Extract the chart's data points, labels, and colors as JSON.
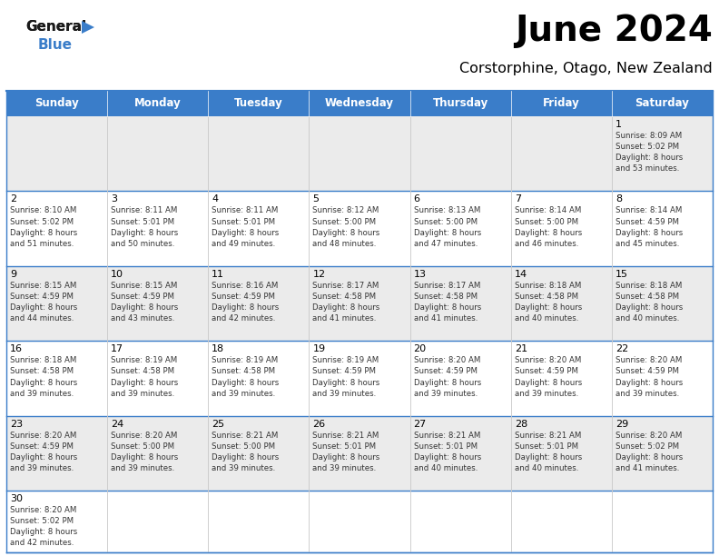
{
  "title": "June 2024",
  "subtitle": "Corstorphine, Otago, New Zealand",
  "days_of_week": [
    "Sunday",
    "Monday",
    "Tuesday",
    "Wednesday",
    "Thursday",
    "Friday",
    "Saturday"
  ],
  "header_bg": "#3A7DC9",
  "header_text": "#FFFFFF",
  "row_bg_even": "#EBEBEB",
  "row_bg_odd": "#FFFFFF",
  "border_color": "#3A7DC9",
  "inner_border_color": "#C8C8C8",
  "day_num_color": "#000000",
  "cell_text_color": "#333333",
  "logo_general_color": "#1A1A1A",
  "logo_blue_color": "#3A7DC9",
  "logo_triangle_color": "#3A7DC9",
  "calendar_data": [
    [
      null,
      null,
      null,
      null,
      null,
      null,
      {
        "day": "1",
        "sunrise": "8:09 AM",
        "sunset": "5:02 PM",
        "daylight": "8 hours\nand 53 minutes."
      }
    ],
    [
      {
        "day": "2",
        "sunrise": "8:10 AM",
        "sunset": "5:02 PM",
        "daylight": "8 hours\nand 51 minutes."
      },
      {
        "day": "3",
        "sunrise": "8:11 AM",
        "sunset": "5:01 PM",
        "daylight": "8 hours\nand 50 minutes."
      },
      {
        "day": "4",
        "sunrise": "8:11 AM",
        "sunset": "5:01 PM",
        "daylight": "8 hours\nand 49 minutes."
      },
      {
        "day": "5",
        "sunrise": "8:12 AM",
        "sunset": "5:00 PM",
        "daylight": "8 hours\nand 48 minutes."
      },
      {
        "day": "6",
        "sunrise": "8:13 AM",
        "sunset": "5:00 PM",
        "daylight": "8 hours\nand 47 minutes."
      },
      {
        "day": "7",
        "sunrise": "8:14 AM",
        "sunset": "5:00 PM",
        "daylight": "8 hours\nand 46 minutes."
      },
      {
        "day": "8",
        "sunrise": "8:14 AM",
        "sunset": "4:59 PM",
        "daylight": "8 hours\nand 45 minutes."
      }
    ],
    [
      {
        "day": "9",
        "sunrise": "8:15 AM",
        "sunset": "4:59 PM",
        "daylight": "8 hours\nand 44 minutes."
      },
      {
        "day": "10",
        "sunrise": "8:15 AM",
        "sunset": "4:59 PM",
        "daylight": "8 hours\nand 43 minutes."
      },
      {
        "day": "11",
        "sunrise": "8:16 AM",
        "sunset": "4:59 PM",
        "daylight": "8 hours\nand 42 minutes."
      },
      {
        "day": "12",
        "sunrise": "8:17 AM",
        "sunset": "4:58 PM",
        "daylight": "8 hours\nand 41 minutes."
      },
      {
        "day": "13",
        "sunrise": "8:17 AM",
        "sunset": "4:58 PM",
        "daylight": "8 hours\nand 41 minutes."
      },
      {
        "day": "14",
        "sunrise": "8:18 AM",
        "sunset": "4:58 PM",
        "daylight": "8 hours\nand 40 minutes."
      },
      {
        "day": "15",
        "sunrise": "8:18 AM",
        "sunset": "4:58 PM",
        "daylight": "8 hours\nand 40 minutes."
      }
    ],
    [
      {
        "day": "16",
        "sunrise": "8:18 AM",
        "sunset": "4:58 PM",
        "daylight": "8 hours\nand 39 minutes."
      },
      {
        "day": "17",
        "sunrise": "8:19 AM",
        "sunset": "4:58 PM",
        "daylight": "8 hours\nand 39 minutes."
      },
      {
        "day": "18",
        "sunrise": "8:19 AM",
        "sunset": "4:58 PM",
        "daylight": "8 hours\nand 39 minutes."
      },
      {
        "day": "19",
        "sunrise": "8:19 AM",
        "sunset": "4:59 PM",
        "daylight": "8 hours\nand 39 minutes."
      },
      {
        "day": "20",
        "sunrise": "8:20 AM",
        "sunset": "4:59 PM",
        "daylight": "8 hours\nand 39 minutes."
      },
      {
        "day": "21",
        "sunrise": "8:20 AM",
        "sunset": "4:59 PM",
        "daylight": "8 hours\nand 39 minutes."
      },
      {
        "day": "22",
        "sunrise": "8:20 AM",
        "sunset": "4:59 PM",
        "daylight": "8 hours\nand 39 minutes."
      }
    ],
    [
      {
        "day": "23",
        "sunrise": "8:20 AM",
        "sunset": "4:59 PM",
        "daylight": "8 hours\nand 39 minutes."
      },
      {
        "day": "24",
        "sunrise": "8:20 AM",
        "sunset": "5:00 PM",
        "daylight": "8 hours\nand 39 minutes."
      },
      {
        "day": "25",
        "sunrise": "8:21 AM",
        "sunset": "5:00 PM",
        "daylight": "8 hours\nand 39 minutes."
      },
      {
        "day": "26",
        "sunrise": "8:21 AM",
        "sunset": "5:01 PM",
        "daylight": "8 hours\nand 39 minutes."
      },
      {
        "day": "27",
        "sunrise": "8:21 AM",
        "sunset": "5:01 PM",
        "daylight": "8 hours\nand 40 minutes."
      },
      {
        "day": "28",
        "sunrise": "8:21 AM",
        "sunset": "5:01 PM",
        "daylight": "8 hours\nand 40 minutes."
      },
      {
        "day": "29",
        "sunrise": "8:20 AM",
        "sunset": "5:02 PM",
        "daylight": "8 hours\nand 41 minutes."
      }
    ],
    [
      {
        "day": "30",
        "sunrise": "8:20 AM",
        "sunset": "5:02 PM",
        "daylight": "8 hours\nand 42 minutes."
      },
      null,
      null,
      null,
      null,
      null,
      null
    ]
  ]
}
